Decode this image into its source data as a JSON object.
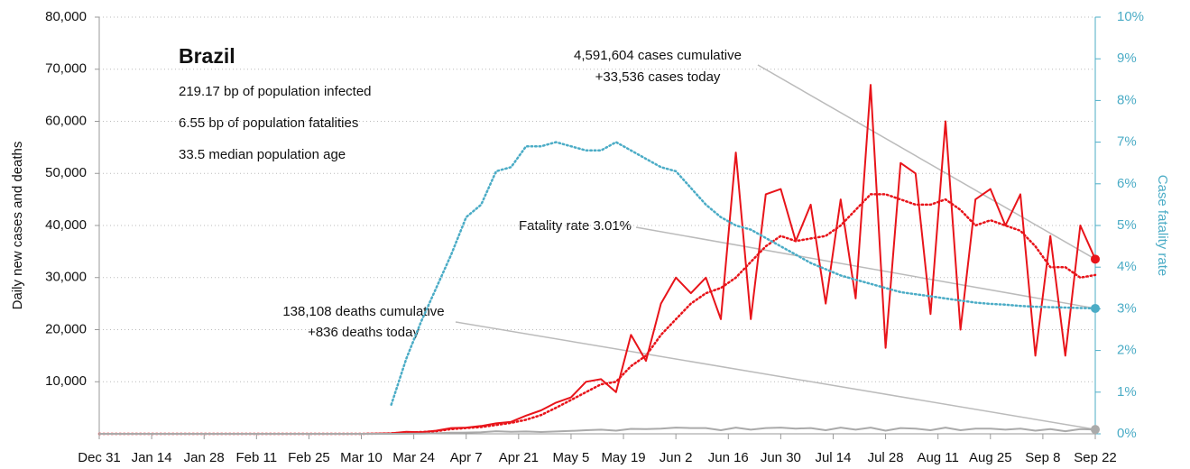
{
  "chart_data": {
    "type": "line",
    "title": "Brazil",
    "stats": [
      "219.17 bp of population infected",
      "6.55 bp of population fatalities",
      "33.5 median population age"
    ],
    "ylabel": "Daily new cases and deaths",
    "y2label": "Case fatality rate",
    "annotations": {
      "cases": [
        "4,591,604 cases cumulative",
        "+33,536 cases today"
      ],
      "rate": [
        "Fatality rate 3.01%"
      ],
      "deaths": [
        "138,108 deaths cumulative",
        "+836 deaths today"
      ]
    },
    "x": [
      "Dec 31",
      "Mar 10",
      "Mar 14",
      "Mar 18",
      "Mar 22",
      "Mar 26",
      "Mar 30",
      "Apr 3",
      "Apr 7",
      "Apr 11",
      "Apr 15",
      "Apr 19",
      "Apr 23",
      "Apr 27",
      "May 1",
      "May 5",
      "May 9",
      "May 13",
      "May 17",
      "May 21",
      "May 25",
      "May 29",
      "Jun 2",
      "Jun 6",
      "Jun 10",
      "Jun 14",
      "Jun 18",
      "Jun 22",
      "Jun 26",
      "Jun 30",
      "Jul 4",
      "Jul 8",
      "Jul 12",
      "Jul 16",
      "Jul 20",
      "Jul 24",
      "Jul 28",
      "Aug 1",
      "Aug 5",
      "Aug 9",
      "Aug 13",
      "Aug 17",
      "Aug 21",
      "Aug 25",
      "Aug 29",
      "Sep 2",
      "Sep 6",
      "Sep 10",
      "Sep 14",
      "Sep 18",
      "Sep 22"
    ],
    "xticks": [
      "Dec 31",
      "Jan 14",
      "Jan 28",
      "Feb 11",
      "Feb 25",
      "Mar 10",
      "Mar 24",
      "Apr 7",
      "Apr 21",
      "May 5",
      "May 19",
      "Jun 2",
      "Jun 16",
      "Jun 30",
      "Jul 14",
      "Jul 28",
      "Aug 11",
      "Aug 25",
      "Sep 8",
      "Sep 22"
    ],
    "series": [
      {
        "color": "#e8141a",
        "dash": "solid",
        "values": [
          0,
          0,
          50,
          100,
          400,
          300,
          600,
          1100,
          1200,
          1500,
          2000,
          2300,
          3500,
          4500,
          6000,
          7000,
          10000,
          10500,
          8000,
          19000,
          14000,
          25000,
          30000,
          27000,
          30000,
          22000,
          54000,
          22000,
          46000,
          47000,
          37000,
          44000,
          25000,
          45000,
          26000,
          67000,
          16500,
          52000,
          50000,
          23000,
          60000,
          20000,
          45000,
          47000,
          40000,
          46000,
          15000,
          38000,
          15000,
          40000,
          33536
        ]
      },
      {
        "color": "#e8141a",
        "dash": "dotted",
        "values": [
          0,
          0,
          30,
          80,
          250,
          350,
          500,
          900,
          1100,
          1300,
          1700,
          2100,
          2700,
          3600,
          5000,
          6500,
          8000,
          9500,
          10000,
          13000,
          15000,
          19000,
          22000,
          25000,
          27000,
          28000,
          30000,
          33000,
          36000,
          38000,
          37000,
          37500,
          38000,
          40000,
          43000,
          46000,
          46000,
          45000,
          44000,
          44000,
          45000,
          43000,
          40000,
          41000,
          40000,
          39000,
          36000,
          32000,
          32000,
          30000,
          30500
        ]
      },
      {
        "color": "#aaaaaa",
        "dash": "solid",
        "values": [
          0,
          0,
          0,
          5,
          20,
          50,
          100,
          200,
          250,
          300,
          500,
          400,
          450,
          350,
          450,
          550,
          700,
          800,
          600,
          950,
          900,
          1000,
          1200,
          1100,
          1100,
          700,
          1200,
          800,
          1100,
          1200,
          1000,
          1100,
          700,
          1200,
          800,
          1200,
          600,
          1100,
          1000,
          700,
          1200,
          700,
          1000,
          1000,
          800,
          1000,
          600,
          900,
          500,
          900,
          836
        ]
      },
      {
        "color": "#4bacc6",
        "dash": "dotted",
        "axis": "y2",
        "values": [
          null,
          null,
          null,
          0.7,
          1.8,
          2.7,
          3.5,
          4.3,
          5.2,
          5.5,
          6.3,
          6.4,
          6.9,
          6.9,
          7.0,
          6.9,
          6.8,
          6.8,
          7.0,
          6.8,
          6.6,
          6.4,
          6.3,
          5.9,
          5.5,
          5.2,
          5.0,
          4.9,
          4.7,
          4.5,
          4.3,
          4.1,
          3.95,
          3.8,
          3.7,
          3.6,
          3.5,
          3.4,
          3.35,
          3.3,
          3.25,
          3.2,
          3.15,
          3.12,
          3.1,
          3.07,
          3.05,
          3.04,
          3.03,
          3.02,
          3.01
        ]
      }
    ],
    "ylim": [
      0,
      80000
    ],
    "yticks": [
      {
        "value": 10000,
        "label": "10,000"
      },
      {
        "value": 20000,
        "label": "20,000"
      },
      {
        "value": 30000,
        "label": "30,000"
      },
      {
        "value": 40000,
        "label": "40,000"
      },
      {
        "value": 50000,
        "label": "50,000"
      },
      {
        "value": 60000,
        "label": "60,000"
      },
      {
        "value": 70000,
        "label": "70,000"
      },
      {
        "value": 80000,
        "label": "80,000"
      }
    ],
    "y2lim": [
      0,
      10
    ],
    "y2ticks": [
      {
        "value": 0,
        "label": "0%"
      },
      {
        "value": 1,
        "label": "1%"
      },
      {
        "value": 2,
        "label": "2%"
      },
      {
        "value": 3,
        "label": "3%"
      },
      {
        "value": 4,
        "label": "4%"
      },
      {
        "value": 5,
        "label": "5%"
      },
      {
        "value": 6,
        "label": "6%"
      },
      {
        "value": 7,
        "label": "7%"
      },
      {
        "value": 8,
        "label": "8%"
      },
      {
        "value": 9,
        "label": "9%"
      },
      {
        "value": 10,
        "label": "10%"
      }
    ],
    "grid": true
  }
}
